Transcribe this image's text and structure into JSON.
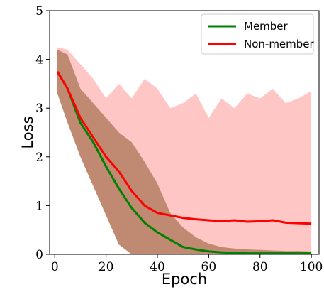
{
  "chart_data": {
    "type": "line",
    "title": "",
    "xlabel": "Epoch",
    "ylabel": "Loss",
    "xlim": [
      -2,
      103
    ],
    "ylim": [
      0,
      5
    ],
    "xticks": [
      0,
      20,
      40,
      60,
      80,
      100
    ],
    "yticks": [
      0,
      1,
      2,
      3,
      4,
      5
    ],
    "grid": false,
    "legend_position": "top-right",
    "series": [
      {
        "name": "Member",
        "color": "#008000",
        "fill_color": "#8b5a2b",
        "x": [
          1,
          5,
          10,
          15,
          20,
          25,
          30,
          35,
          40,
          45,
          50,
          55,
          60,
          65,
          70,
          75,
          80,
          85,
          90,
          95,
          100
        ],
        "values": [
          3.75,
          3.4,
          2.7,
          2.3,
          1.8,
          1.35,
          0.95,
          0.65,
          0.45,
          0.3,
          0.15,
          0.1,
          0.06,
          0.04,
          0.03,
          0.02,
          0.02,
          0.02,
          0.02,
          0.02,
          0.02
        ],
        "upper": [
          4.2,
          4.1,
          3.4,
          3.1,
          2.8,
          2.5,
          2.3,
          1.9,
          1.45,
          0.85,
          0.55,
          0.35,
          0.22,
          0.15,
          0.12,
          0.1,
          0.09,
          0.08,
          0.07,
          0.07,
          0.06
        ],
        "lower": [
          3.3,
          2.7,
          2.0,
          1.4,
          0.8,
          0.2,
          0,
          0,
          0,
          0,
          0,
          0,
          0,
          0,
          0,
          0,
          0,
          0,
          0,
          0,
          0
        ]
      },
      {
        "name": "Non-member",
        "color": "#ff0000",
        "fill_color": "#ffb3b3",
        "x": [
          1,
          5,
          10,
          15,
          20,
          25,
          30,
          35,
          40,
          45,
          50,
          55,
          60,
          65,
          70,
          75,
          80,
          85,
          90,
          95,
          100
        ],
        "values": [
          3.75,
          3.4,
          2.8,
          2.4,
          2.0,
          1.7,
          1.3,
          1.0,
          0.85,
          0.8,
          0.75,
          0.72,
          0.7,
          0.68,
          0.7,
          0.67,
          0.68,
          0.7,
          0.65,
          0.64,
          0.63
        ],
        "upper": [
          4.25,
          4.2,
          3.9,
          3.6,
          3.2,
          3.5,
          3.2,
          3.6,
          3.4,
          3.0,
          3.1,
          3.3,
          2.8,
          3.2,
          3.0,
          3.3,
          3.2,
          3.4,
          3.1,
          3.2,
          3.35
        ],
        "lower": [
          3.3,
          2.7,
          2.0,
          1.4,
          0.8,
          0.2,
          0,
          0,
          0,
          0,
          0,
          0,
          0,
          0,
          0,
          0,
          0,
          0,
          0,
          0,
          0
        ]
      }
    ]
  }
}
